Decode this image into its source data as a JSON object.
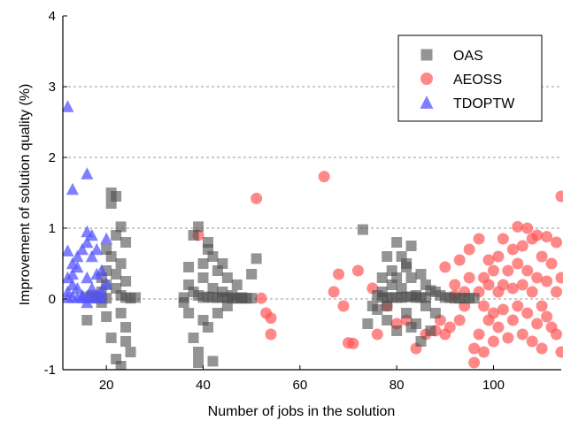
{
  "chart_data": {
    "type": "scatter",
    "title": "",
    "xlabel": "Number of jobs in the solution",
    "ylabel": "Improvement of solution quality (%)",
    "xlim": [
      11,
      114
    ],
    "ylim": [
      -1,
      4
    ],
    "xticks": [
      20,
      40,
      60,
      80,
      100
    ],
    "yticks": [
      -1,
      0,
      1,
      2,
      3,
      4
    ],
    "grid": "horizontal dashed at 1, 2, 3",
    "legend_position": "top-right",
    "series": [
      {
        "name": "OAS",
        "marker": "square",
        "color": "#4d4d4d",
        "points": [
          [
            17,
            0.05
          ],
          [
            18,
            0.02
          ],
          [
            19,
            0.1
          ],
          [
            19,
            -0.05
          ],
          [
            20,
            0.01
          ],
          [
            20,
            0.2
          ],
          [
            20,
            0.4
          ],
          [
            21,
            0.6
          ],
          [
            21,
            1.5
          ],
          [
            21,
            1.35
          ],
          [
            22,
            1.45
          ],
          [
            22,
            0.15
          ],
          [
            22,
            0.9
          ],
          [
            23,
            1.02
          ],
          [
            23,
            0.5
          ],
          [
            23,
            -0.2
          ],
          [
            24,
            0.8
          ],
          [
            24,
            -0.6
          ],
          [
            24,
            -0.4
          ],
          [
            24,
            0.25
          ],
          [
            20,
            -0.25
          ],
          [
            21,
            -0.55
          ],
          [
            22,
            -0.85
          ],
          [
            23,
            -0.95
          ],
          [
            25,
            -0.75
          ],
          [
            19,
            0.3
          ],
          [
            20,
            0.7
          ],
          [
            22,
            0.35
          ],
          [
            23,
            0.05
          ],
          [
            24,
            0.02
          ],
          [
            25,
            0.01
          ],
          [
            26,
            0.02
          ],
          [
            18,
            0.01
          ],
          [
            16,
            0.03
          ],
          [
            16,
            -0.3
          ],
          [
            37,
            0.45
          ],
          [
            37,
            0.2
          ],
          [
            38,
            -0.55
          ],
          [
            38,
            0.9
          ],
          [
            39,
            -0.75
          ],
          [
            39,
            -0.9
          ],
          [
            39,
            1.02
          ],
          [
            40,
            0.5
          ],
          [
            40,
            0.3
          ],
          [
            40,
            -0.3
          ],
          [
            41,
            0.7
          ],
          [
            41,
            0.8
          ],
          [
            41,
            -0.4
          ],
          [
            42,
            0.6
          ],
          [
            42,
            0.15
          ],
          [
            42,
            -0.88
          ],
          [
            43,
            0.4
          ],
          [
            43,
            -0.2
          ],
          [
            44,
            0.5
          ],
          [
            44,
            0.1
          ],
          [
            45,
            0.3
          ],
          [
            45,
            -0.1
          ],
          [
            46,
            0.05
          ],
          [
            47,
            0.2
          ],
          [
            48,
            0.02
          ],
          [
            49,
            0.01
          ],
          [
            50,
            0.01
          ],
          [
            50,
            0.35
          ],
          [
            51,
            0.57
          ],
          [
            36,
            -0.05
          ],
          [
            36,
            0.02
          ],
          [
            37,
            -0.2
          ],
          [
            38,
            0.1
          ],
          [
            39,
            0.05
          ],
          [
            40,
            0.02
          ],
          [
            41,
            0.03
          ],
          [
            42,
            0.02
          ],
          [
            43,
            0.02
          ],
          [
            44,
            0.02
          ],
          [
            45,
            0.02
          ],
          [
            46,
            0.01
          ],
          [
            47,
            0.01
          ],
          [
            48,
            0.01
          ],
          [
            73,
            0.98
          ],
          [
            74,
            -0.35
          ],
          [
            75,
            -0.1
          ],
          [
            76,
            0.05
          ],
          [
            77,
            0.1
          ],
          [
            77,
            0.3
          ],
          [
            78,
            0.6
          ],
          [
            78,
            -0.3
          ],
          [
            79,
            0.2
          ],
          [
            79,
            0.4
          ],
          [
            80,
            0.8
          ],
          [
            80,
            -0.45
          ],
          [
            81,
            0.6
          ],
          [
            81,
            0.15
          ],
          [
            82,
            0.5
          ],
          [
            82,
            -0.2
          ],
          [
            83,
            0.75
          ],
          [
            83,
            0.3
          ],
          [
            84,
            -0.35
          ],
          [
            84,
            0.05
          ],
          [
            85,
            -0.6
          ],
          [
            85,
            0.35
          ],
          [
            86,
            0.2
          ],
          [
            86,
            -0.1
          ],
          [
            87,
            0.12
          ],
          [
            88,
            0.1
          ],
          [
            88,
            -0.2
          ],
          [
            89,
            0.05
          ],
          [
            90,
            0.02
          ],
          [
            91,
            0.02
          ],
          [
            92,
            0.01
          ],
          [
            93,
            0.01
          ],
          [
            94,
            0.01
          ],
          [
            95,
            0.01
          ],
          [
            96,
            0.01
          ],
          [
            80,
            0.02
          ],
          [
            81,
            0.02
          ],
          [
            82,
            0.03
          ],
          [
            83,
            0.03
          ],
          [
            84,
            0.02
          ],
          [
            85,
            0.02
          ],
          [
            86,
            0.02
          ],
          [
            78,
            0.02
          ],
          [
            79,
            0.02
          ],
          [
            77,
            0.02
          ],
          [
            76,
            -0.15
          ],
          [
            78,
            -0.1
          ],
          [
            83,
            -0.4
          ],
          [
            87,
            -0.45
          ],
          [
            80,
            0.3
          ],
          [
            82,
            0.45
          ]
        ]
      },
      {
        "name": "AEOSS",
        "marker": "circle",
        "color": "#ff5555",
        "points": [
          [
            39,
            0.9
          ],
          [
            51,
            1.42
          ],
          [
            52,
            0.01
          ],
          [
            53,
            -0.2
          ],
          [
            54,
            -0.27
          ],
          [
            54,
            -0.5
          ],
          [
            65,
            1.73
          ],
          [
            67,
            0.1
          ],
          [
            68,
            0.35
          ],
          [
            69,
            -0.1
          ],
          [
            70,
            -0.62
          ],
          [
            71,
            -0.63
          ],
          [
            72,
            0.4
          ],
          [
            75,
            0.15
          ],
          [
            76,
            -0.5
          ],
          [
            78,
            -0.1
          ],
          [
            80,
            -0.35
          ],
          [
            82,
            -0.3
          ],
          [
            84,
            -0.7
          ],
          [
            86,
            -0.5
          ],
          [
            88,
            -0.45
          ],
          [
            89,
            -0.3
          ],
          [
            90,
            -0.5
          ],
          [
            90,
            0.45
          ],
          [
            91,
            -0.4
          ],
          [
            92,
            0.05
          ],
          [
            92,
            0.2
          ],
          [
            93,
            -0.3
          ],
          [
            93,
            0.55
          ],
          [
            94,
            0.1
          ],
          [
            94,
            -0.1
          ],
          [
            95,
            0.7
          ],
          [
            95,
            0.3
          ],
          [
            96,
            -0.9
          ],
          [
            96,
            -0.7
          ],
          [
            97,
            0.85
          ],
          [
            97,
            0.1
          ],
          [
            97,
            -0.5
          ],
          [
            98,
            0.3
          ],
          [
            98,
            -0.1
          ],
          [
            98,
            -0.75
          ],
          [
            99,
            0.55
          ],
          [
            99,
            0.2
          ],
          [
            99,
            -0.3
          ],
          [
            100,
            0.4
          ],
          [
            100,
            -0.2
          ],
          [
            100,
            -0.6
          ],
          [
            101,
            0.6
          ],
          [
            101,
            0.1
          ],
          [
            101,
            -0.4
          ],
          [
            102,
            0.85
          ],
          [
            102,
            0.2
          ],
          [
            102,
            -0.15
          ],
          [
            103,
            0.4
          ],
          [
            103,
            -0.55
          ],
          [
            104,
            0.7
          ],
          [
            104,
            0.15
          ],
          [
            104,
            -0.3
          ],
          [
            105,
            1.02
          ],
          [
            105,
            0.5
          ],
          [
            105,
            -0.1
          ],
          [
            106,
            0.75
          ],
          [
            106,
            0.2
          ],
          [
            106,
            -0.5
          ],
          [
            107,
            1.0
          ],
          [
            107,
            0.4
          ],
          [
            107,
            -0.2
          ],
          [
            108,
            0.85
          ],
          [
            108,
            0.1
          ],
          [
            108,
            -0.6
          ],
          [
            109,
            0.9
          ],
          [
            109,
            0.3
          ],
          [
            109,
            -0.35
          ],
          [
            110,
            0.6
          ],
          [
            110,
            -0.1
          ],
          [
            110,
            -0.7
          ],
          [
            111,
            0.88
          ],
          [
            111,
            0.25
          ],
          [
            111,
            -0.25
          ],
          [
            112,
            0.5
          ],
          [
            112,
            -0.4
          ],
          [
            113,
            0.8
          ],
          [
            113,
            0.1
          ],
          [
            113,
            -0.5
          ],
          [
            114,
            1.45
          ],
          [
            114,
            0.3
          ],
          [
            114,
            -0.75
          ]
        ]
      },
      {
        "name": "TDOPTW",
        "marker": "triangle",
        "color": "#5555ff",
        "points": [
          [
            12,
            2.72
          ],
          [
            13,
            1.55
          ],
          [
            16,
            1.77
          ],
          [
            16,
            0.95
          ],
          [
            12,
            0.68
          ],
          [
            12,
            0.3
          ],
          [
            12,
            0.1
          ],
          [
            12,
            0.02
          ],
          [
            13,
            0.5
          ],
          [
            13,
            0.35
          ],
          [
            13,
            0.2
          ],
          [
            13,
            0.03
          ],
          [
            14,
            0.45
          ],
          [
            14,
            0.15
          ],
          [
            14,
            0.02
          ],
          [
            15,
            0.7
          ],
          [
            15,
            0.05
          ],
          [
            16,
            0.3
          ],
          [
            16,
            0.8
          ],
          [
            16,
            0.02
          ],
          [
            17,
            0.9
          ],
          [
            17,
            0.6
          ],
          [
            17,
            0.15
          ],
          [
            17,
            0.02
          ],
          [
            18,
            0.7
          ],
          [
            18,
            0.35
          ],
          [
            18,
            0.05
          ],
          [
            19,
            0.4
          ],
          [
            19,
            0.12
          ],
          [
            19,
            0.02
          ],
          [
            20,
            0.22
          ],
          [
            20,
            0.85
          ],
          [
            15,
            0.02
          ],
          [
            14,
            0.6
          ],
          [
            16,
            -0.05
          ]
        ]
      }
    ]
  }
}
